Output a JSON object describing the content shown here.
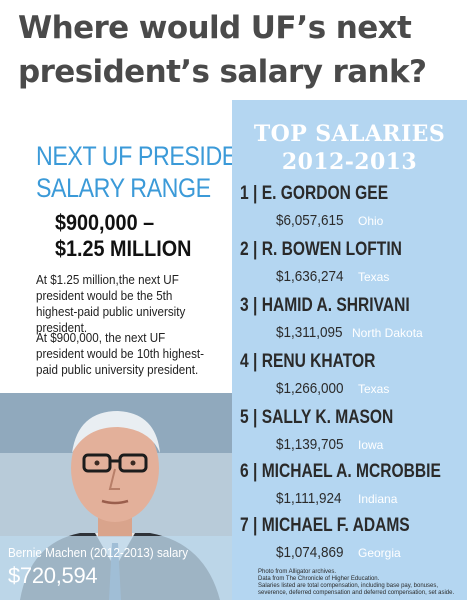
{
  "headline": {
    "line1": "Where would UF’s next",
    "line2": "president’s salary rank?"
  },
  "range": {
    "title_line1": "NEXT UF PRESIDENT",
    "title_line2": "SALARY RANGE",
    "value_line1": "$900,000 –",
    "value_line2": "$1.25 MILLION",
    "note1": "At $1.25 million,the next UF president would be the 5th highest-paid public university president.",
    "note2": "At $900,000, the next UF president would be 10th highest-paid public university president."
  },
  "caption": {
    "label": "Bernie Machen (2012-2013) salary",
    "value": "$720,594"
  },
  "top": {
    "title_line1": "TOP SALARIES",
    "title_line2": "2012-2013",
    "entries": [
      {
        "rank": "1 |",
        "name": "E. GORDON GEE",
        "salary": "$6,057,615",
        "state": "Ohio"
      },
      {
        "rank": "2 |",
        "name": "R. BOWEN LOFTIN",
        "salary": "$1,636,274",
        "state": "Texas"
      },
      {
        "rank": "3 |",
        "name": "HAMID A. SHRIVANI",
        "salary": "$1,311,095",
        "state": "North Dakota"
      },
      {
        "rank": "4 |",
        "name": "RENU KHATOR",
        "salary": "$1,266,000",
        "state": "Texas"
      },
      {
        "rank": "5 |",
        "name": "SALLY K. MASON",
        "salary": "$1,139,705",
        "state": "Iowa"
      },
      {
        "rank": "6 |",
        "name": "MICHAEL A. MCROBBIE",
        "salary": "$1,111,924",
        "state": "Indiana"
      },
      {
        "rank": "7 |",
        "name": "MICHAEL F. ADAMS",
        "salary": "$1,074,869",
        "state": "Georgia"
      }
    ]
  },
  "footnote": {
    "line1": "Photo from Alligator archives.",
    "line2": "Data from The Chronicle of Higher Education.",
    "line3": "Salaries listed are total compensation, including base pay, bonuses, severence, deferred compensation and deferred compensation, set aside."
  },
  "colors": {
    "headline": "#4a4a4a",
    "accent_blue": "#3b9ad8",
    "panel_bg": "#b4d6f1"
  }
}
